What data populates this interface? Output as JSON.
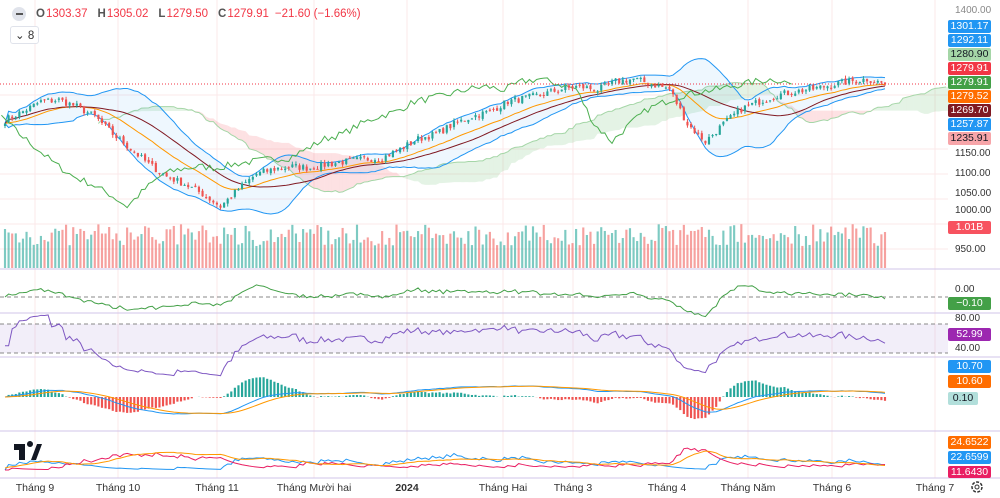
{
  "legend": {
    "o_label": "O",
    "open": "1303.37",
    "h_label": "H",
    "high": "1305.02",
    "l_label": "L",
    "low": "1279.50",
    "c_label": "C",
    "close": "1279.91",
    "change": "−21.60 (−1.66%)",
    "indicators_count": "8"
  },
  "price_axis": {
    "ticks": [
      "1400.00",
      "1150.00",
      "1100.00",
      "1050.00",
      "1000.00",
      "950.00"
    ]
  },
  "price_tags": [
    {
      "value": "1301.17",
      "bg": "#2196f3",
      "fg": "#fff"
    },
    {
      "value": "1292.11",
      "bg": "#2196f3",
      "fg": "#fff"
    },
    {
      "value": "1280.90",
      "bg": "#a5d6a7",
      "fg": "#131722"
    },
    {
      "value": "1279.91",
      "bg": "#f23645",
      "fg": "#fff"
    },
    {
      "value": "1279.91",
      "bg": "#43a047",
      "fg": "#fff"
    },
    {
      "value": "1279.52",
      "bg": "#ff6d00",
      "fg": "#fff"
    },
    {
      "value": "1269.70",
      "bg": "#801922",
      "fg": "#fff"
    },
    {
      "value": "1257.87",
      "bg": "#2196f3",
      "fg": "#fff"
    },
    {
      "value": "1235.91",
      "bg": "#f7a5a9",
      "fg": "#131722"
    }
  ],
  "volume_tag": {
    "value": "1.01B",
    "bg": "#f7525f"
  },
  "momentum": {
    "tick": "0.00",
    "value": "−0.10",
    "bg": "#43a047"
  },
  "rsi": {
    "upper": "80.00",
    "lower": "40.00",
    "value": "52.99",
    "bg": "#9c27b0"
  },
  "macd": {
    "macd": "10.70",
    "signal": "10.60",
    "hist": "0.10"
  },
  "dmi": {
    "adx": "24.6522",
    "plus": "22.6599",
    "minus": "11.6430"
  },
  "time_axis": [
    "Tháng 9",
    "Tháng 10",
    "Tháng 11",
    "Tháng Mười hai",
    "2024",
    "Tháng Hai",
    "Tháng 3",
    "Tháng 4",
    "Tháng Năm",
    "Tháng 6",
    "Tháng 7"
  ],
  "colors": {
    "up": "#26a69a",
    "down": "#ef5350",
    "bb": "#2196f3",
    "ema": "#ff9800",
    "sma": "#801922",
    "lag": "#4caf50"
  },
  "chart_data": {
    "type": "candlestick",
    "weekly_closes": [
      1208,
      1225,
      1245,
      1248,
      1235,
      1215,
      1180,
      1150,
      1120,
      1095,
      1080,
      1060,
      1035,
      1070,
      1100,
      1110,
      1115,
      1112,
      1120,
      1125,
      1130,
      1132,
      1150,
      1170,
      1180,
      1200,
      1215,
      1225,
      1245,
      1252,
      1260,
      1270,
      1275,
      1268,
      1285,
      1290,
      1280,
      1270,
      1200,
      1165,
      1200,
      1230,
      1245,
      1258,
      1265,
      1270,
      1278,
      1285,
      1290,
      1280
    ],
    "last": {
      "open": 1303.37,
      "high": 1305.02,
      "low": 1279.5,
      "close": 1279.91
    }
  }
}
